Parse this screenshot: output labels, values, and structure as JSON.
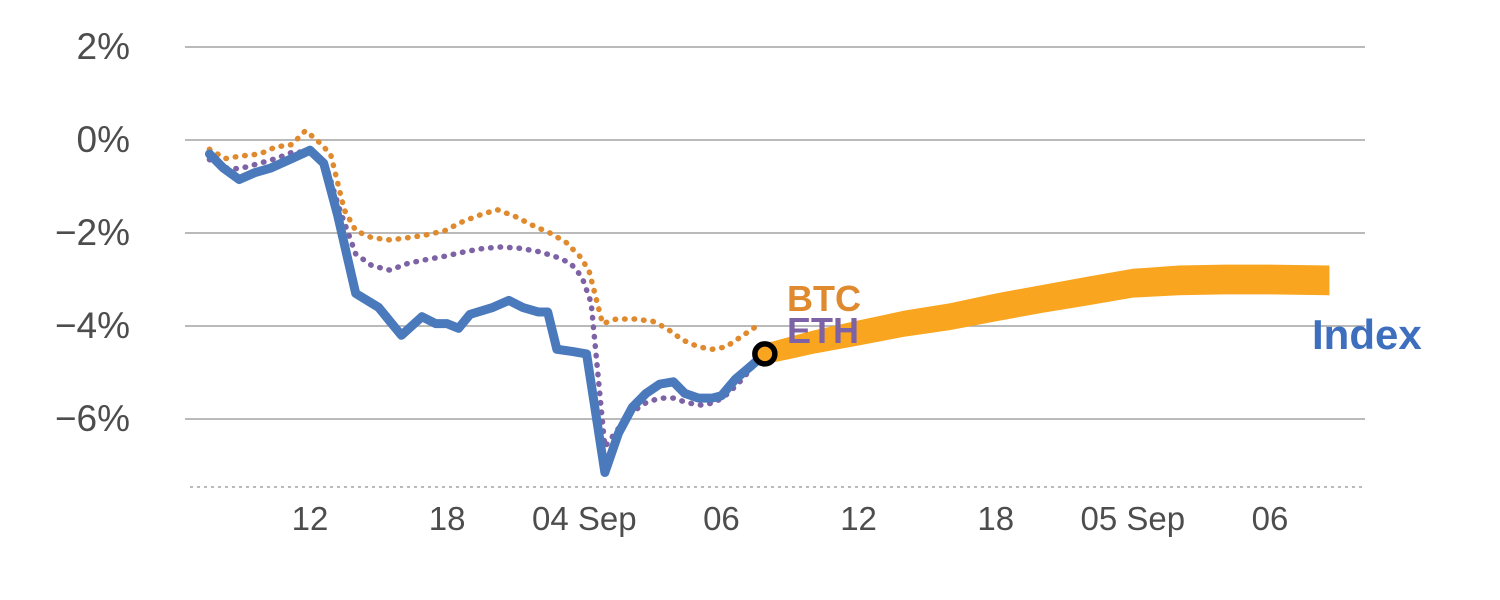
{
  "chart_data": {
    "type": "line",
    "title": "",
    "ylabel": "",
    "xlabel": "",
    "ylim": [
      -7.8,
      2.4
    ],
    "xlim": [
      7.0,
      57.8
    ],
    "grid": "horizontal",
    "colors": {
      "grid": "#A3A3A3",
      "axis_text": "#4D4D4D",
      "index_blue": "#4A79BC",
      "btc_orange": "#DF8A2E",
      "eth_purple": "#7D63A6",
      "band_orange": "#F9A51F",
      "marker_stroke": "#000000"
    },
    "y_ticks": {
      "values": [
        2,
        0,
        -2,
        -4,
        -6
      ],
      "labels": [
        "2%",
        "0%",
        "−2%",
        "−4%",
        "−6%"
      ]
    },
    "x_ticks": {
      "values": [
        12,
        18,
        24,
        30,
        36,
        42,
        48,
        54
      ],
      "labels": [
        "12",
        "18",
        "04 Sep",
        "06",
        "12",
        "18",
        "05 Sep",
        "06"
      ]
    },
    "series": [
      {
        "name": "BTC",
        "style": "dotted",
        "color": "#DF8A2E",
        "points": [
          [
            7.6,
            -0.2
          ],
          [
            8.3,
            -0.4
          ],
          [
            8.9,
            -0.35
          ],
          [
            9.8,
            -0.3
          ],
          [
            10.5,
            -0.15
          ],
          [
            11.2,
            -0.1
          ],
          [
            11.8,
            0.2
          ],
          [
            12.3,
            0.0
          ],
          [
            12.9,
            -0.3
          ],
          [
            13.5,
            -1.5
          ],
          [
            14,
            -1.95
          ],
          [
            14.7,
            -2.1
          ],
          [
            15.5,
            -2.15
          ],
          [
            16.3,
            -2.1
          ],
          [
            17,
            -2.05
          ],
          [
            17.9,
            -1.95
          ],
          [
            18.7,
            -1.75
          ],
          [
            19.5,
            -1.6
          ],
          [
            20.2,
            -1.5
          ],
          [
            21,
            -1.65
          ],
          [
            21.8,
            -1.85
          ],
          [
            22.5,
            -2.0
          ],
          [
            23.2,
            -2.2
          ],
          [
            23.8,
            -2.5
          ],
          [
            24.2,
            -2.8
          ],
          [
            24.8,
            -3.95
          ],
          [
            25.4,
            -3.85
          ],
          [
            26.2,
            -3.85
          ],
          [
            27,
            -3.9
          ],
          [
            27.6,
            -4.05
          ],
          [
            28.3,
            -4.3
          ],
          [
            29,
            -4.45
          ],
          [
            29.6,
            -4.5
          ],
          [
            30.2,
            -4.45
          ],
          [
            30.8,
            -4.25
          ],
          [
            31.4,
            -4.05
          ],
          [
            31.7,
            -3.95
          ]
        ]
      },
      {
        "name": "ETH",
        "style": "dotted",
        "color": "#7D63A6",
        "points": [
          [
            7.6,
            -0.42
          ],
          [
            8.3,
            -0.6
          ],
          [
            8.9,
            -0.62
          ],
          [
            9.8,
            -0.5
          ],
          [
            10.5,
            -0.4
          ],
          [
            11.3,
            -0.25
          ],
          [
            12,
            -0.28
          ],
          [
            12.7,
            -0.55
          ],
          [
            13.3,
            -1.5
          ],
          [
            14,
            -2.45
          ],
          [
            14.7,
            -2.7
          ],
          [
            15.5,
            -2.8
          ],
          [
            16.3,
            -2.65
          ],
          [
            17,
            -2.58
          ],
          [
            17.9,
            -2.5
          ],
          [
            18.8,
            -2.4
          ],
          [
            19.6,
            -2.33
          ],
          [
            20.4,
            -2.3
          ],
          [
            21.2,
            -2.33
          ],
          [
            22,
            -2.4
          ],
          [
            22.7,
            -2.5
          ],
          [
            23.4,
            -2.65
          ],
          [
            23.9,
            -2.95
          ],
          [
            24.3,
            -3.5
          ],
          [
            24.9,
            -6.6
          ],
          [
            25.5,
            -6.2
          ],
          [
            26.1,
            -5.85
          ],
          [
            26.7,
            -5.65
          ],
          [
            27.3,
            -5.55
          ],
          [
            27.9,
            -5.55
          ],
          [
            28.5,
            -5.65
          ],
          [
            29.1,
            -5.7
          ],
          [
            29.7,
            -5.65
          ],
          [
            30.3,
            -5.45
          ],
          [
            30.9,
            -5.15
          ],
          [
            31.5,
            -4.8
          ],
          [
            31.9,
            -4.6
          ]
        ]
      },
      {
        "name": "Index",
        "style": "solid",
        "color": "#4A79BC",
        "points": [
          [
            7.6,
            -0.3
          ],
          [
            8.2,
            -0.6
          ],
          [
            8.9,
            -0.85
          ],
          [
            9.6,
            -0.7
          ],
          [
            10.3,
            -0.6
          ],
          [
            11.2,
            -0.4
          ],
          [
            12,
            -0.22
          ],
          [
            12.6,
            -0.5
          ],
          [
            13.2,
            -1.6
          ],
          [
            14,
            -3.3
          ],
          [
            15,
            -3.6
          ],
          [
            15.5,
            -3.9
          ],
          [
            16,
            -4.2
          ],
          [
            16.9,
            -3.8
          ],
          [
            17.5,
            -3.95
          ],
          [
            18,
            -3.95
          ],
          [
            18.5,
            -4.05
          ],
          [
            19,
            -3.75
          ],
          [
            20,
            -3.6
          ],
          [
            20.7,
            -3.45
          ],
          [
            21.3,
            -3.6
          ],
          [
            22,
            -3.7
          ],
          [
            22.4,
            -3.7
          ],
          [
            22.8,
            -4.5
          ],
          [
            23.5,
            -4.55
          ],
          [
            24.1,
            -4.6
          ],
          [
            24.9,
            -7.15
          ],
          [
            25.5,
            -6.3
          ],
          [
            26.1,
            -5.75
          ],
          [
            26.7,
            -5.45
          ],
          [
            27.3,
            -5.25
          ],
          [
            27.9,
            -5.2
          ],
          [
            28.4,
            -5.45
          ],
          [
            29,
            -5.55
          ],
          [
            29.6,
            -5.55
          ],
          [
            30,
            -5.5
          ],
          [
            30.6,
            -5.15
          ],
          [
            31.2,
            -4.9
          ],
          [
            31.9,
            -4.6
          ]
        ]
      }
    ],
    "forecast_band": {
      "name": "Index forecast band",
      "color": "#F9A51F",
      "x": [
        31.9,
        33,
        34,
        36,
        38,
        40,
        42,
        44,
        46,
        48,
        50,
        52,
        54,
        56.6
      ],
      "top": [
        -4.38,
        -4.23,
        -4.1,
        -3.88,
        -3.67,
        -3.51,
        -3.3,
        -3.12,
        -2.94,
        -2.77,
        -2.7,
        -2.68,
        -2.68,
        -2.7
      ],
      "bottom": [
        -4.82,
        -4.71,
        -4.6,
        -4.42,
        -4.23,
        -4.09,
        -3.9,
        -3.72,
        -3.56,
        -3.39,
        -3.34,
        -3.32,
        -3.32,
        -3.34
      ]
    },
    "marker": {
      "x": 31.9,
      "y": -4.6
    }
  }
}
